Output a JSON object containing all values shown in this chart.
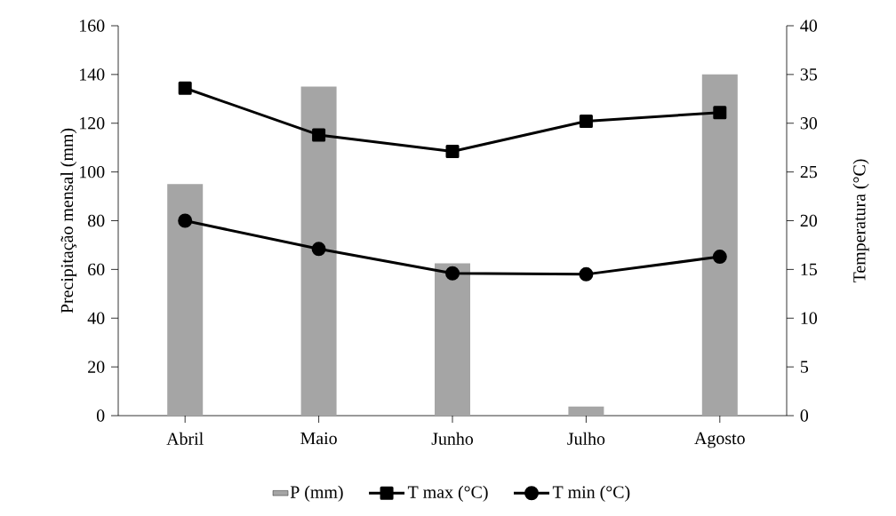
{
  "chart_data": {
    "type": "bar",
    "ylabel": "Precipitação mensal (mm)",
    "y2label": "Temperatura (°C)",
    "categories": [
      "Abril",
      "Maio",
      "Junho",
      "Julho",
      "Agosto"
    ],
    "series": [
      {
        "name": "P (mm)",
        "color": "#a5a5a5",
        "values": [
          95,
          135,
          62.5,
          3.7,
          140
        ]
      },
      {
        "name": "T max (°C)",
        "type": "line",
        "axis": "y2",
        "marker": "square",
        "color": "#000000",
        "values": [
          33.6,
          28.8,
          27.1,
          30.2,
          31.1
        ]
      },
      {
        "name": "T min (°C)",
        "type": "line",
        "axis": "y2",
        "marker": "circle",
        "color": "#000000",
        "values": [
          20.0,
          17.1,
          14.6,
          14.5,
          16.3
        ]
      }
    ],
    "ylim": [
      0,
      160
    ],
    "yticks": [
      0,
      20,
      40,
      60,
      80,
      100,
      120,
      140,
      160
    ],
    "y2lim": [
      0,
      40
    ],
    "y2ticks": [
      0,
      5,
      10,
      15,
      20,
      25,
      30,
      35,
      40
    ],
    "legend": "bottom",
    "grid": false
  }
}
